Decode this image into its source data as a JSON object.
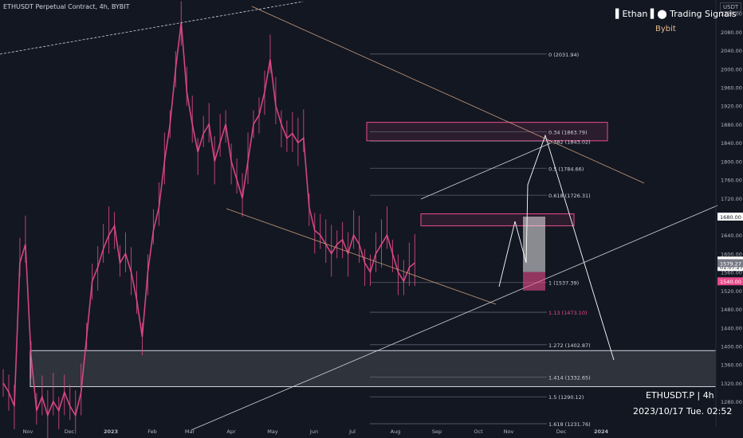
{
  "header": {
    "symbol_line": "ETHUSDT Perpetual Contract, 4h, BYBIT",
    "brand": "▌Ethan ▌⬤ Trading Signals",
    "exchange": "Bybit",
    "footer_symbol": "ETHUSDT.P | 4h",
    "footer_time": "2023/10/17 Tue. 02:52",
    "axis_currency": "USDT"
  },
  "colors": {
    "background": "#131722",
    "grid_text": "#b2b5be",
    "candle": "#e84b8a",
    "trendline": "#c59a77",
    "zone_fill": "#2a2e39",
    "accent_red": "#e84b8a",
    "fib_line": "#5d606b"
  },
  "chart_data": {
    "type": "candlestick",
    "x_ticks": [
      "Nov",
      "Dec",
      "2023",
      "Feb",
      "Mar",
      "Apr",
      "May",
      "Jun",
      "Jul",
      "Aug",
      "Sep",
      "Oct",
      "Nov",
      "Dec",
      "2024"
    ],
    "y_ticks": [
      1280,
      1320,
      1360,
      1400,
      1440,
      1480,
      1520,
      1560,
      1600,
      1640,
      1680,
      1720,
      1760,
      1800,
      1840,
      1880,
      1920,
      1960,
      2000,
      2040,
      2080,
      2120
    ],
    "ylim": [
      1225,
      2135
    ],
    "price_markers": [
      {
        "label": "1680.00",
        "value": 1680.0,
        "style": "light"
      },
      {
        "label": "1584.89",
        "value": 1584.89,
        "style": "light"
      },
      {
        "label": "01:07:27",
        "value": 1571,
        "style": "light"
      },
      {
        "label": "1579.27",
        "value": 1579.27,
        "style": "grey"
      },
      {
        "label": "1540.00",
        "value": 1540.0,
        "style": "red"
      }
    ],
    "fib_levels": [
      {
        "ratio": "0",
        "price": "2031.94",
        "value": 2031.94
      },
      {
        "ratio": "0.34",
        "price": "1863.79",
        "value": 1863.79
      },
      {
        "ratio": "0.382",
        "price": "1843.02",
        "value": 1843.02
      },
      {
        "ratio": "0.5",
        "price": "1784.66",
        "value": 1784.66
      },
      {
        "ratio": "0.618",
        "price": "1726.31",
        "value": 1726.31
      },
      {
        "ratio": "1",
        "price": "1537.39",
        "value": 1537.39
      },
      {
        "ratio": "1.13",
        "price": "1473.10",
        "value": 1473.1
      },
      {
        "ratio": "1.272",
        "price": "1402.87",
        "value": 1402.87
      },
      {
        "ratio": "1.414",
        "price": "1332.65",
        "value": 1332.65
      },
      {
        "ratio": "1.5",
        "price": "1290.12",
        "value": 1290.12
      },
      {
        "ratio": "1.618",
        "price": "1231.76",
        "value": 1231.76
      }
    ],
    "zones": [
      {
        "name": "upper-resistance",
        "from": 1844,
        "to": 1884
      },
      {
        "name": "mid-resistance",
        "from": 1660,
        "to": 1686
      },
      {
        "name": "lower-support",
        "from": 1312,
        "to": 1390
      }
    ],
    "price_path": [
      [
        0,
        1320
      ],
      [
        2,
        1300
      ],
      [
        4,
        1270
      ],
      [
        6,
        1580
      ],
      [
        8,
        1620
      ],
      [
        10,
        1380
      ],
      [
        12,
        1260
      ],
      [
        14,
        1290
      ],
      [
        16,
        1250
      ],
      [
        18,
        1280
      ],
      [
        20,
        1260
      ],
      [
        22,
        1300
      ],
      [
        24,
        1270
      ],
      [
        26,
        1250
      ],
      [
        28,
        1300
      ],
      [
        30,
        1420
      ],
      [
        32,
        1540
      ],
      [
        34,
        1570
      ],
      [
        36,
        1610
      ],
      [
        38,
        1640
      ],
      [
        40,
        1660
      ],
      [
        42,
        1580
      ],
      [
        44,
        1600
      ],
      [
        46,
        1560
      ],
      [
        48,
        1500
      ],
      [
        50,
        1420
      ],
      [
        52,
        1560
      ],
      [
        54,
        1650
      ],
      [
        56,
        1700
      ],
      [
        58,
        1800
      ],
      [
        60,
        1880
      ],
      [
        62,
        2000
      ],
      [
        64,
        2100
      ],
      [
        66,
        1950
      ],
      [
        68,
        1880
      ],
      [
        70,
        1820
      ],
      [
        72,
        1860
      ],
      [
        74,
        1880
      ],
      [
        76,
        1800
      ],
      [
        78,
        1840
      ],
      [
        80,
        1880
      ],
      [
        82,
        1800
      ],
      [
        84,
        1760
      ],
      [
        86,
        1720
      ],
      [
        88,
        1800
      ],
      [
        90,
        1880
      ],
      [
        92,
        1900
      ],
      [
        94,
        1950
      ],
      [
        96,
        2020
      ],
      [
        98,
        1920
      ],
      [
        100,
        1880
      ],
      [
        102,
        1850
      ],
      [
        104,
        1860
      ],
      [
        106,
        1840
      ],
      [
        108,
        1850
      ],
      [
        110,
        1700
      ],
      [
        112,
        1650
      ],
      [
        114,
        1640
      ],
      [
        116,
        1620
      ],
      [
        118,
        1600
      ],
      [
        120,
        1620
      ],
      [
        122,
        1630
      ],
      [
        124,
        1600
      ],
      [
        126,
        1640
      ],
      [
        128,
        1620
      ],
      [
        130,
        1580
      ],
      [
        132,
        1560
      ],
      [
        134,
        1600
      ],
      [
        136,
        1620
      ],
      [
        138,
        1640
      ],
      [
        140,
        1600
      ],
      [
        142,
        1560
      ],
      [
        144,
        1540
      ],
      [
        146,
        1570
      ],
      [
        148,
        1580
      ]
    ],
    "price_index_max": 180
  }
}
